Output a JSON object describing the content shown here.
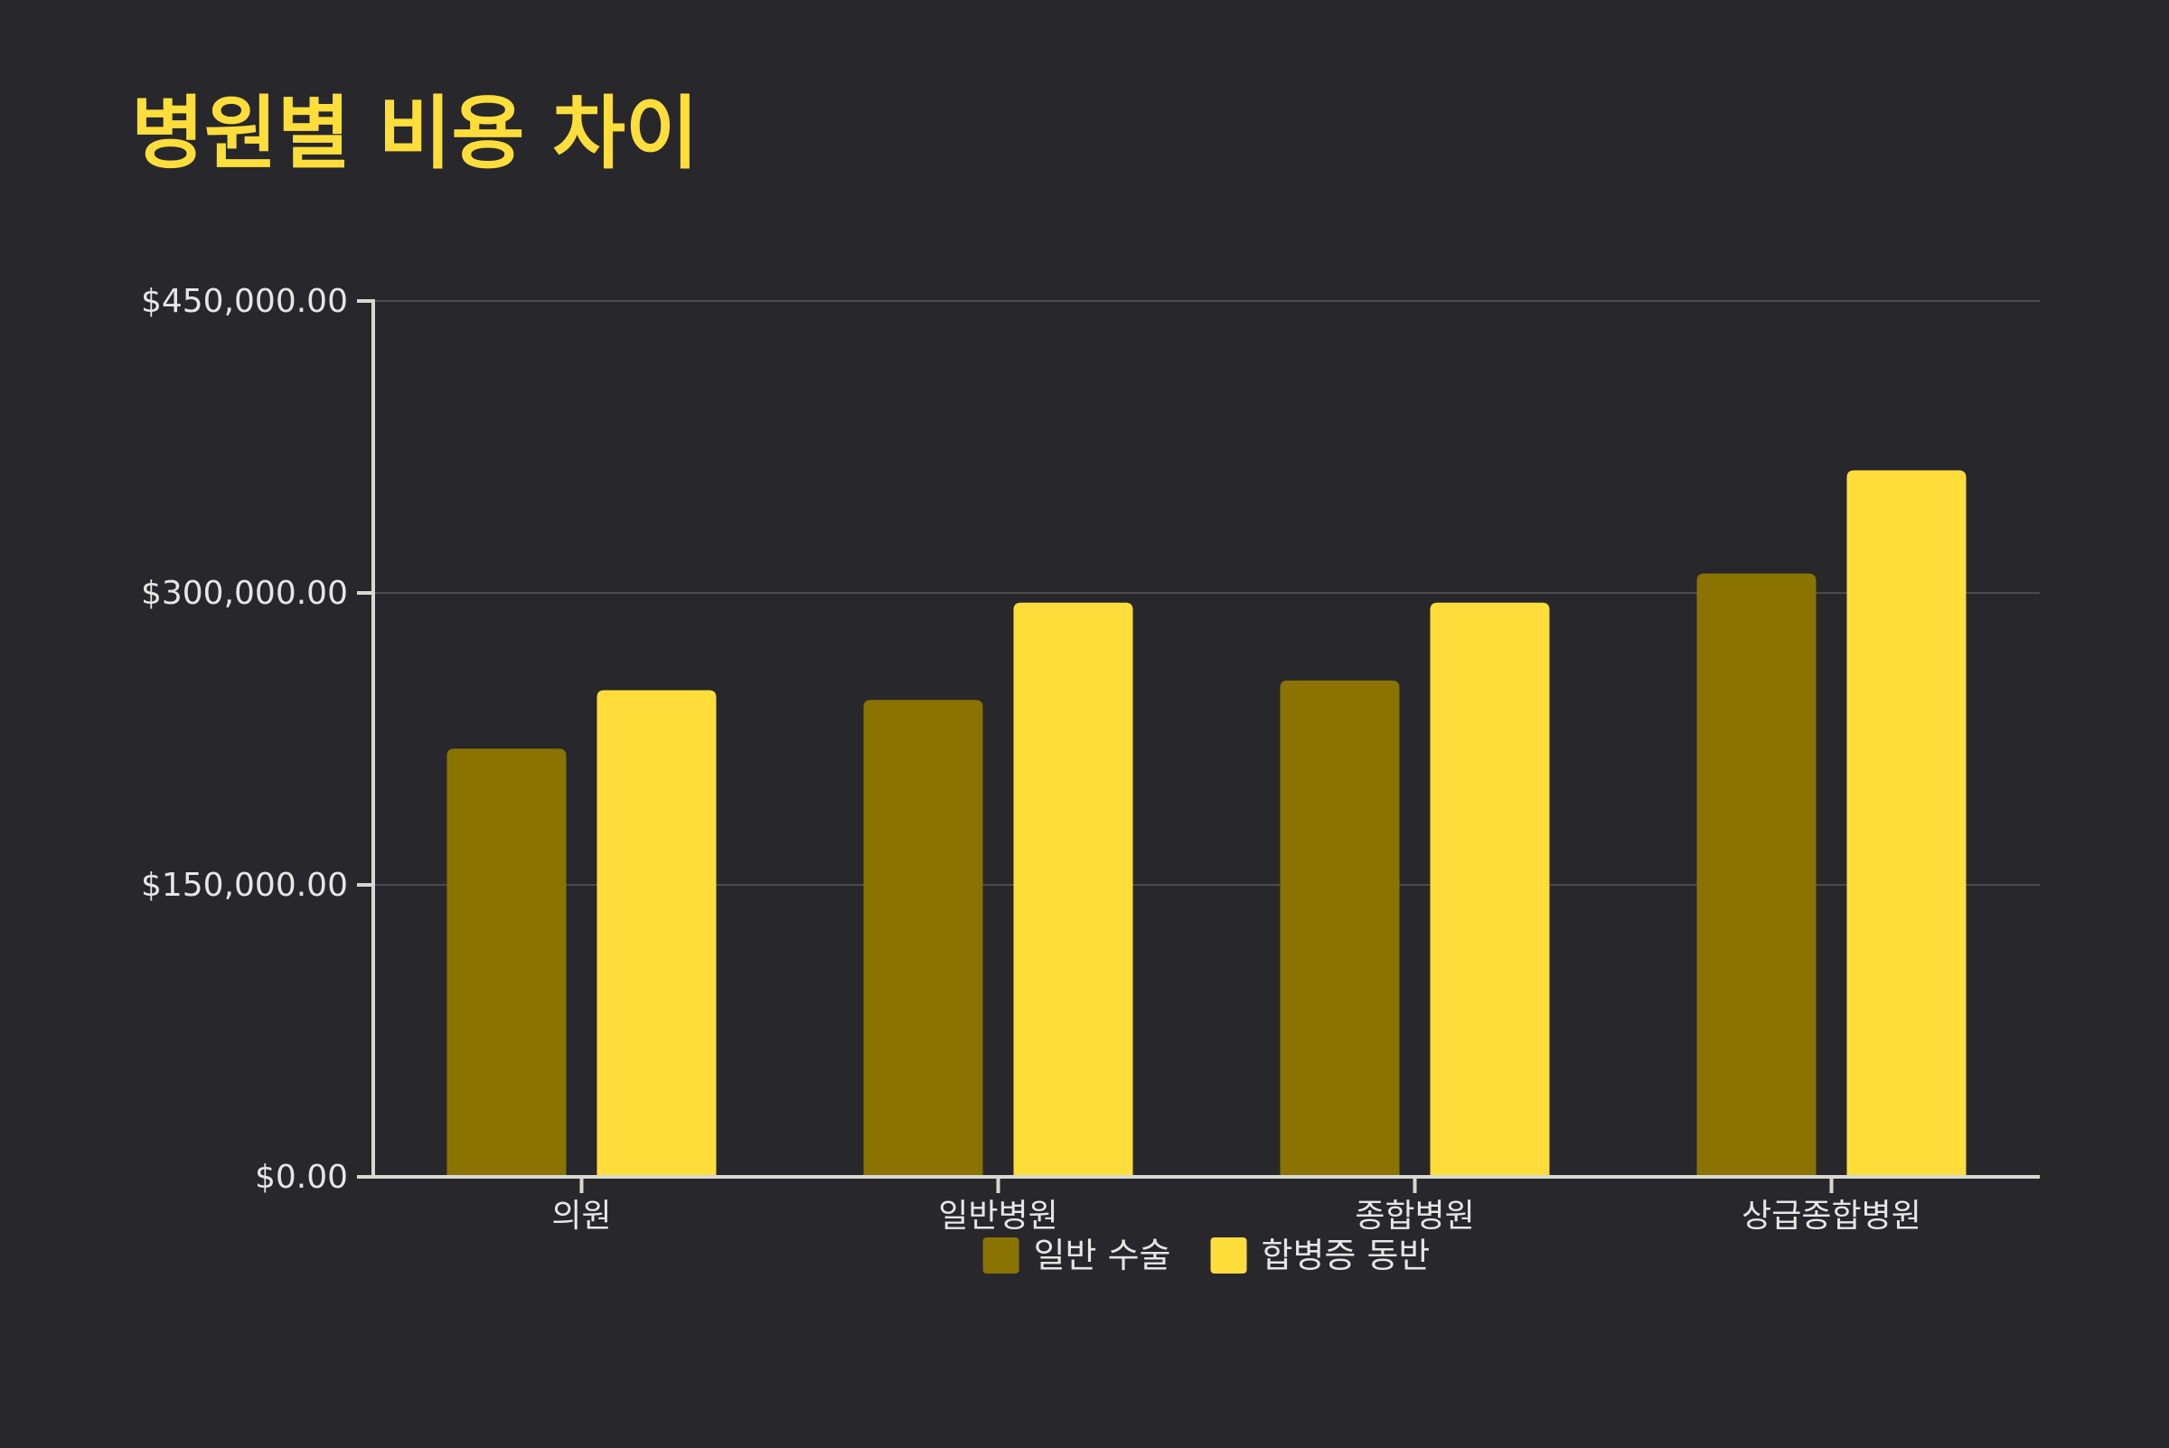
{
  "colors": {
    "background": "#27272c",
    "title": "#ffde3b",
    "grid": "#4a4a50",
    "axis": "#d8d8d0",
    "text": "#e6e6e6"
  },
  "chart_data": {
    "type": "bar",
    "title": "병원별 비용 차이",
    "xlabel": "",
    "ylabel": "",
    "categories": [
      "의원",
      "일반병원",
      "종합병원",
      "상급종합병원"
    ],
    "series": [
      {
        "name": "일반 수술",
        "color": "#8a7300",
        "values": [
          220000,
          245000,
          255000,
          310000
        ]
      },
      {
        "name": "합병증 동반",
        "color": "#ffde3b",
        "values": [
          250000,
          295000,
          295000,
          363000
        ]
      }
    ],
    "ylim": [
      0,
      450000
    ],
    "yticks": [
      0,
      150000,
      300000,
      450000
    ],
    "ytick_labels": [
      "$0.00",
      "$150,000.00",
      "$300,000.00",
      "$450,000.00"
    ],
    "grid": true,
    "legend_position": "bottom"
  }
}
